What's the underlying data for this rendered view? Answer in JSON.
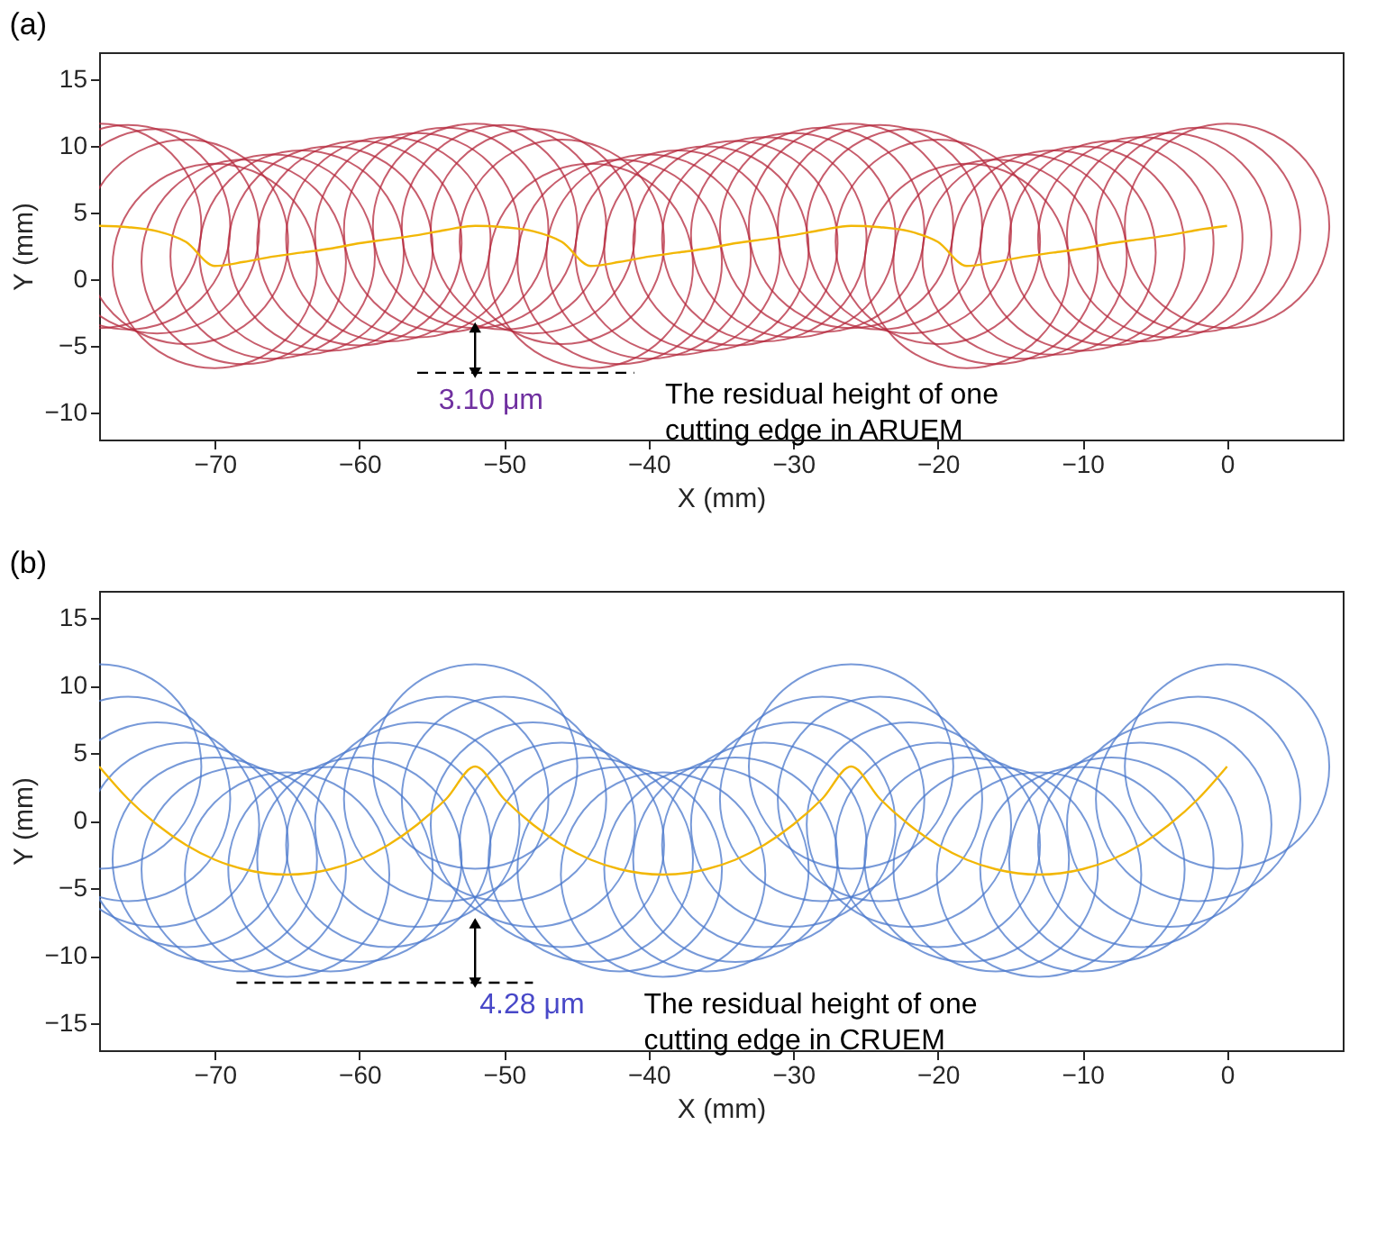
{
  "chart_data": [
    {
      "type": "line",
      "title": "(a)",
      "xlabel": "X (mm)",
      "ylabel": "Y (mm)",
      "xlim": [
        -78,
        8
      ],
      "ylim": [
        -12,
        17
      ],
      "xticks": [
        -70,
        -60,
        -50,
        -40,
        -30,
        -20,
        -10,
        0
      ],
      "yticks": [
        -10,
        -5,
        0,
        5,
        10,
        15
      ],
      "grid": false,
      "series": [
        {
          "color": "#f2b705",
          "x": [
            -78,
            -76,
            -74,
            -72,
            -70,
            -68,
            -66,
            -64,
            -62,
            -60,
            -58,
            -56,
            -54,
            -52,
            -50,
            -48,
            -46,
            -44,
            -42,
            -40,
            -38,
            -36,
            -34,
            -32,
            -30,
            -28,
            -26,
            -24,
            -22,
            -20,
            -18,
            -16,
            -14,
            -12,
            -10,
            -8,
            -6,
            -4,
            -2,
            0
          ],
          "values": [
            4,
            3.9,
            3.6,
            2.8,
            1,
            1.3,
            1.7,
            2,
            2.3,
            2.7,
            3,
            3.3,
            3.7,
            4,
            3.9,
            3.6,
            2.8,
            1,
            1.3,
            1.7,
            2,
            2.3,
            2.7,
            3,
            3.3,
            3.7,
            4,
            3.9,
            3.6,
            2.8,
            1,
            1.3,
            1.7,
            2,
            2.3,
            2.7,
            3,
            3.3,
            3.7,
            4
          ]
        },
        {
          "color": "#000000",
          "line_style": "dashed",
          "x": [
            -56,
            -41
          ],
          "values": [
            -7,
            -7
          ]
        },
        {
          "color": "#000000",
          "marker": "triangle",
          "x": [
            -52,
            -52
          ],
          "values": [
            -7,
            -3.6
          ]
        }
      ],
      "annotations": [
        "3.10 μm",
        "The residual height of one\ncutting edge in ARUEM"
      ]
    },
    {
      "type": "line",
      "title": "(b)",
      "xlabel": "X (mm)",
      "ylabel": "Y (mm)",
      "xlim": [
        -78,
        8
      ],
      "ylim": [
        -17,
        17
      ],
      "xticks": [
        -70,
        -60,
        -50,
        -40,
        -30,
        -20,
        -10,
        0
      ],
      "yticks": [
        -15,
        -10,
        -5,
        0,
        5,
        10,
        15
      ],
      "grid": false,
      "series": [
        {
          "color": "#f2b705",
          "x": [
            -78,
            -76,
            -74,
            -72,
            -70,
            -68,
            -65,
            -62,
            -60,
            -58,
            -56,
            -54,
            -52,
            -50,
            -48,
            -46,
            -44,
            -42,
            -39,
            -36,
            -34,
            -32,
            -30,
            -28,
            -26,
            -24,
            -22,
            -20,
            -18,
            -16,
            -13,
            -10,
            -8,
            -6,
            -4,
            -2,
            0
          ],
          "values": [
            4,
            1.6,
            -0.3,
            -1.8,
            -2.9,
            -3.6,
            -4,
            -3.6,
            -2.9,
            -1.8,
            -0.3,
            1.6,
            4,
            1.6,
            -0.3,
            -1.8,
            -2.9,
            -3.6,
            -4,
            -3.6,
            -2.9,
            -1.8,
            -0.3,
            1.6,
            4,
            1.6,
            -0.3,
            -1.8,
            -2.9,
            -3.6,
            -4,
            -3.6,
            -2.9,
            -1.8,
            -0.3,
            1.6,
            4
          ]
        },
        {
          "color": "#000000",
          "line_style": "dashed",
          "x": [
            -68.5,
            -48
          ],
          "values": [
            -12,
            -12
          ]
        },
        {
          "color": "#000000",
          "marker": "triangle",
          "x": [
            -52,
            -52
          ],
          "values": [
            -12,
            -7.6
          ]
        }
      ],
      "annotations": [
        "4.28 μm",
        "The residual height of one\ncutting edge in CRUEM"
      ]
    }
  ]
}
